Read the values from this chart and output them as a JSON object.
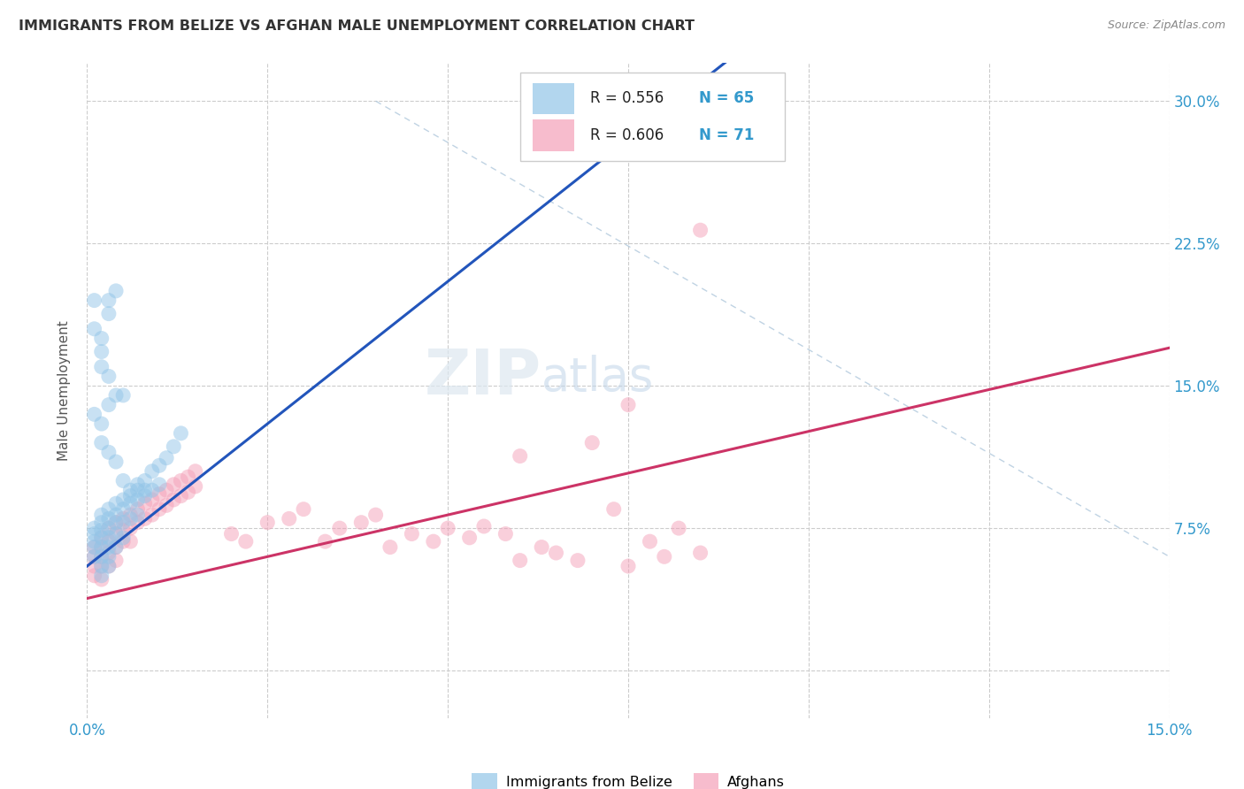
{
  "title": "IMMIGRANTS FROM BELIZE VS AFGHAN MALE UNEMPLOYMENT CORRELATION CHART",
  "source": "Source: ZipAtlas.com",
  "ylabel": "Male Unemployment",
  "xmin": 0.0,
  "xmax": 0.15,
  "ymin": 0.0,
  "ymax": 0.3,
  "blue_R": "0.556",
  "blue_N": "65",
  "pink_R": "0.606",
  "pink_N": "71",
  "blue_scatter_color": "#92c5e8",
  "pink_scatter_color": "#f4a0b8",
  "blue_line_color": "#2255bb",
  "pink_line_color": "#cc3366",
  "dash_line_color": "#b0c8dc",
  "grid_color": "#cccccc",
  "watermark_zip": "ZIP",
  "watermark_atlas": "atlas",
  "tick_color": "#3399cc",
  "background": "#ffffff",
  "blue_scatter_x": [
    0.001,
    0.001,
    0.001,
    0.001,
    0.001,
    0.002,
    0.002,
    0.002,
    0.002,
    0.002,
    0.002,
    0.002,
    0.002,
    0.003,
    0.003,
    0.003,
    0.003,
    0.003,
    0.003,
    0.003,
    0.004,
    0.004,
    0.004,
    0.004,
    0.004,
    0.005,
    0.005,
    0.005,
    0.005,
    0.006,
    0.006,
    0.006,
    0.007,
    0.007,
    0.007,
    0.008,
    0.008,
    0.009,
    0.009,
    0.01,
    0.01,
    0.011,
    0.012,
    0.013,
    0.001,
    0.002,
    0.003,
    0.002,
    0.003,
    0.004,
    0.001,
    0.002,
    0.002,
    0.003,
    0.003,
    0.004,
    0.005,
    0.002,
    0.003,
    0.001,
    0.008,
    0.005,
    0.006,
    0.004,
    0.007
  ],
  "blue_scatter_y": [
    0.075,
    0.072,
    0.068,
    0.065,
    0.06,
    0.082,
    0.078,
    0.074,
    0.07,
    0.065,
    0.06,
    0.055,
    0.05,
    0.085,
    0.08,
    0.075,
    0.07,
    0.065,
    0.06,
    0.055,
    0.088,
    0.082,
    0.078,
    0.072,
    0.065,
    0.09,
    0.085,
    0.078,
    0.07,
    0.092,
    0.088,
    0.08,
    0.095,
    0.09,
    0.082,
    0.1,
    0.092,
    0.105,
    0.095,
    0.108,
    0.098,
    0.112,
    0.118,
    0.125,
    0.135,
    0.13,
    0.14,
    0.16,
    0.155,
    0.145,
    0.18,
    0.175,
    0.168,
    0.195,
    0.188,
    0.2,
    0.145,
    0.12,
    0.115,
    0.195,
    0.095,
    0.1,
    0.095,
    0.11,
    0.098
  ],
  "pink_scatter_x": [
    0.001,
    0.001,
    0.001,
    0.001,
    0.002,
    0.002,
    0.002,
    0.002,
    0.002,
    0.003,
    0.003,
    0.003,
    0.003,
    0.004,
    0.004,
    0.004,
    0.004,
    0.005,
    0.005,
    0.005,
    0.006,
    0.006,
    0.006,
    0.007,
    0.007,
    0.008,
    0.008,
    0.009,
    0.009,
    0.01,
    0.01,
    0.011,
    0.011,
    0.012,
    0.012,
    0.013,
    0.013,
    0.014,
    0.014,
    0.015,
    0.015,
    0.02,
    0.022,
    0.025,
    0.028,
    0.03,
    0.033,
    0.035,
    0.038,
    0.04,
    0.042,
    0.045,
    0.048,
    0.05,
    0.053,
    0.055,
    0.058,
    0.06,
    0.063,
    0.065,
    0.068,
    0.07,
    0.073,
    0.075,
    0.078,
    0.08,
    0.082,
    0.085,
    0.06,
    0.075,
    0.085
  ],
  "pink_scatter_y": [
    0.065,
    0.06,
    0.055,
    0.05,
    0.07,
    0.065,
    0.06,
    0.055,
    0.048,
    0.075,
    0.068,
    0.062,
    0.055,
    0.078,
    0.072,
    0.065,
    0.058,
    0.08,
    0.074,
    0.068,
    0.082,
    0.075,
    0.068,
    0.085,
    0.078,
    0.088,
    0.08,
    0.09,
    0.082,
    0.093,
    0.085,
    0.095,
    0.087,
    0.098,
    0.09,
    0.1,
    0.092,
    0.102,
    0.094,
    0.105,
    0.097,
    0.072,
    0.068,
    0.078,
    0.08,
    0.085,
    0.068,
    0.075,
    0.078,
    0.082,
    0.065,
    0.072,
    0.068,
    0.075,
    0.07,
    0.076,
    0.072,
    0.058,
    0.065,
    0.062,
    0.058,
    0.12,
    0.085,
    0.055,
    0.068,
    0.06,
    0.075,
    0.062,
    0.113,
    0.14,
    0.232
  ]
}
